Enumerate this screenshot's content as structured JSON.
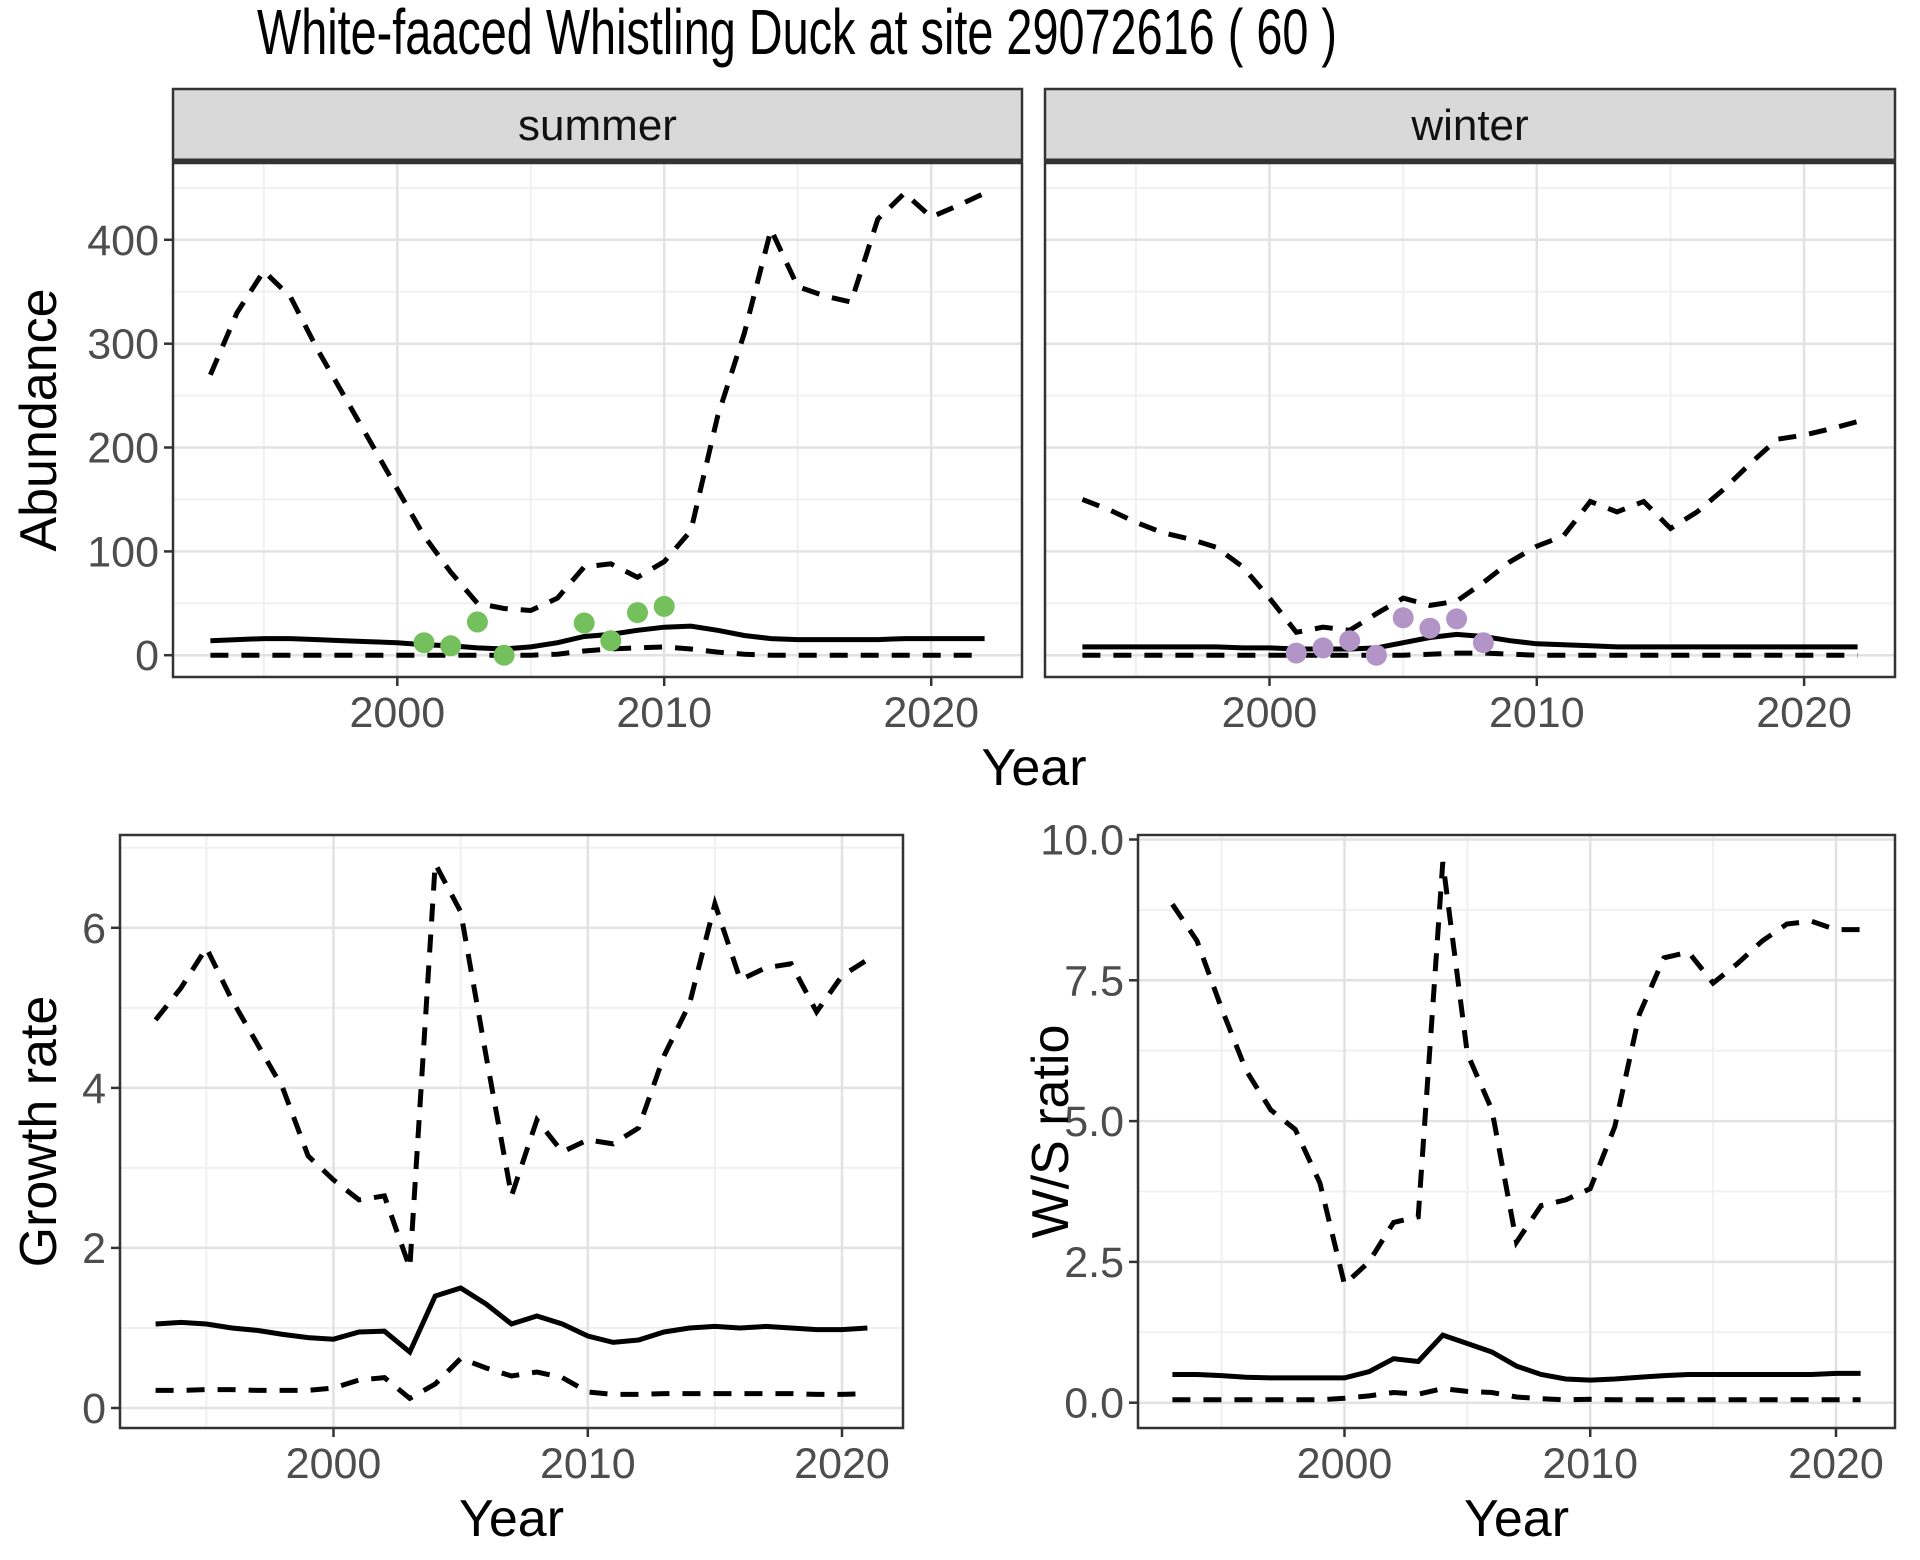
{
  "title": "White-faaced Whistling Duck at site 29072616 ( 60 )",
  "shared_x_axis_label": "Year",
  "colors": {
    "background": "#ffffff",
    "line": "#000000",
    "summer_points": "#74c05c",
    "winter_points": "#b294c7",
    "strip_background": "#d9d9d9",
    "strip_border": "#333333",
    "panel_border": "#333333",
    "grid_major": "#e2e2e2",
    "grid_minor": "#f0f0f0",
    "tick_text": "#4d4d4d",
    "label_text": "#000000",
    "facet_text": "#111111"
  },
  "chart_data": [
    {
      "id": "abundance_summer",
      "type": "line",
      "facet_label": "summer",
      "xlabel": "Year",
      "ylabel": "Abundance",
      "grid": true,
      "legend_position": "none",
      "xlim": [
        1991.6,
        2023.4
      ],
      "ylim": [
        -21,
        474
      ],
      "xticks": {
        "values": [
          2000,
          2010,
          2020
        ],
        "labels": [
          "2000",
          "2010",
          "2020"
        ]
      },
      "yticks": {
        "values": [
          0,
          100,
          200,
          300,
          400
        ],
        "labels": [
          "0",
          "100",
          "200",
          "300",
          "400"
        ]
      },
      "xminor": [
        1995,
        2005,
        2015
      ],
      "yminor": [
        50,
        150,
        250,
        350,
        450
      ],
      "x": [
        1993,
        1994,
        1995,
        1996,
        1997,
        1998,
        1999,
        2000,
        2001,
        2002,
        2003,
        2004,
        2005,
        2006,
        2007,
        2008,
        2009,
        2010,
        2011,
        2012,
        2013,
        2014,
        2015,
        2016,
        2017,
        2018,
        2019,
        2020,
        2021,
        2022
      ],
      "series": [
        {
          "name": "upper_ci",
          "style": "dashed",
          "values": [
            270,
            330,
            370,
            345,
            295,
            250,
            205,
            160,
            115,
            80,
            50,
            45,
            43,
            55,
            85,
            88,
            75,
            90,
            120,
            230,
            310,
            410,
            355,
            346,
            340,
            420,
            445,
            422,
            433,
            445
          ]
        },
        {
          "name": "median",
          "style": "solid",
          "values": [
            14,
            15,
            16,
            16,
            15,
            14,
            13,
            12,
            10,
            9,
            7,
            6,
            8,
            12,
            18,
            20,
            24,
            27,
            28,
            24,
            19,
            16,
            15,
            15,
            15,
            15,
            16,
            16,
            16,
            16
          ]
        },
        {
          "name": "lower_ci",
          "style": "dashed",
          "values": [
            0,
            0,
            0,
            0,
            0,
            0,
            0,
            0,
            0,
            0,
            0,
            0,
            0,
            1,
            4,
            6,
            7,
            8,
            6,
            3,
            1,
            0,
            0,
            0,
            0,
            0,
            0,
            0,
            0,
            0
          ]
        }
      ],
      "points": {
        "name": "summer_observations",
        "color_key": "summer_points",
        "x": [
          2001,
          2002,
          2003,
          2004,
          2007,
          2008,
          2009,
          2010
        ],
        "y": [
          12,
          9,
          32,
          0,
          31,
          14,
          41,
          47
        ]
      }
    },
    {
      "id": "abundance_winter",
      "type": "line",
      "facet_label": "winter",
      "xlabel": "Year",
      "ylabel": "Abundance",
      "grid": true,
      "legend_position": "none",
      "xlim": [
        1991.6,
        2023.4
      ],
      "ylim": [
        -21,
        474
      ],
      "xticks": {
        "values": [
          2000,
          2010,
          2020
        ],
        "labels": [
          "2000",
          "2010",
          "2020"
        ]
      },
      "yticks": {
        "values": [
          0,
          100,
          200,
          300,
          400
        ],
        "labels": [
          "0",
          "100",
          "200",
          "300",
          "400"
        ]
      },
      "xminor": [
        1995,
        2005,
        2015
      ],
      "yminor": [
        50,
        150,
        250,
        350,
        450
      ],
      "x": [
        1993,
        1994,
        1995,
        1996,
        1997,
        1998,
        1999,
        2000,
        2001,
        2002,
        2003,
        2004,
        2005,
        2006,
        2007,
        2008,
        2009,
        2010,
        2011,
        2012,
        2013,
        2014,
        2015,
        2016,
        2017,
        2018,
        2019,
        2020,
        2021,
        2022
      ],
      "series": [
        {
          "name": "upper_ci",
          "style": "dashed",
          "values": [
            150,
            140,
            128,
            118,
            112,
            104,
            85,
            55,
            22,
            27,
            24,
            40,
            55,
            48,
            52,
            70,
            90,
            105,
            115,
            148,
            138,
            148,
            122,
            138,
            160,
            185,
            208,
            212,
            218,
            225
          ]
        },
        {
          "name": "median",
          "style": "solid",
          "values": [
            8,
            8,
            8,
            8,
            8,
            8,
            7,
            7,
            6,
            6,
            6,
            7,
            12,
            17,
            20,
            18,
            14,
            11,
            10,
            9,
            8,
            8,
            8,
            8,
            8,
            8,
            8,
            8,
            8,
            8
          ]
        },
        {
          "name": "lower_ci",
          "style": "dashed",
          "values": [
            0,
            0,
            0,
            0,
            0,
            0,
            0,
            0,
            0,
            0,
            0,
            0,
            0,
            1,
            2,
            2,
            1,
            0,
            0,
            0,
            0,
            0,
            0,
            0,
            0,
            0,
            0,
            0,
            0,
            0
          ]
        }
      ],
      "points": {
        "name": "winter_observations",
        "color_key": "winter_points",
        "x": [
          2001,
          2002,
          2003,
          2004,
          2005,
          2006,
          2007,
          2008
        ],
        "y": [
          2,
          7,
          14,
          0,
          36,
          26,
          35,
          12
        ]
      }
    },
    {
      "id": "growth_rate",
      "type": "line",
      "facet_label": null,
      "xlabel": "Year",
      "ylabel": "Growth rate",
      "grid": true,
      "legend_position": "none",
      "xlim": [
        1991.6,
        2022.4
      ],
      "ylim": [
        -0.25,
        7.16
      ],
      "xticks": {
        "values": [
          2000,
          2010,
          2020
        ],
        "labels": [
          "2000",
          "2010",
          "2020"
        ]
      },
      "yticks": {
        "values": [
          0,
          2,
          4,
          6
        ],
        "labels": [
          "0",
          "2",
          "4",
          "6"
        ]
      },
      "xminor": [
        1995,
        2005,
        2015
      ],
      "yminor": [
        1,
        3,
        5,
        7
      ],
      "x": [
        1993,
        1994,
        1995,
        1996,
        1997,
        1998,
        1999,
        2000,
        2001,
        2002,
        2003,
        2004,
        2005,
        2006,
        2007,
        2008,
        2009,
        2010,
        2011,
        2012,
        2013,
        2014,
        2015,
        2016,
        2017,
        2018,
        2019,
        2020,
        2021
      ],
      "series": [
        {
          "name": "upper_ci",
          "style": "dashed",
          "values": [
            4.85,
            5.25,
            5.75,
            5.1,
            4.55,
            4.0,
            3.15,
            2.85,
            2.6,
            2.65,
            1.75,
            6.8,
            6.2,
            4.4,
            2.65,
            3.6,
            3.2,
            3.35,
            3.3,
            3.5,
            4.4,
            5.05,
            6.3,
            5.35,
            5.5,
            5.55,
            4.95,
            5.4,
            5.6
          ]
        },
        {
          "name": "median",
          "style": "solid",
          "values": [
            1.05,
            1.07,
            1.05,
            1.0,
            0.97,
            0.92,
            0.88,
            0.86,
            0.95,
            0.96,
            0.7,
            1.4,
            1.5,
            1.3,
            1.05,
            1.15,
            1.05,
            0.9,
            0.82,
            0.85,
            0.95,
            1.0,
            1.02,
            1.0,
            1.02,
            1.0,
            0.98,
            0.98,
            1.0
          ]
        },
        {
          "name": "lower_ci",
          "style": "dashed",
          "values": [
            0.22,
            0.22,
            0.23,
            0.23,
            0.22,
            0.22,
            0.22,
            0.25,
            0.35,
            0.38,
            0.12,
            0.3,
            0.62,
            0.5,
            0.4,
            0.45,
            0.38,
            0.2,
            0.17,
            0.17,
            0.18,
            0.18,
            0.18,
            0.18,
            0.18,
            0.18,
            0.17,
            0.17,
            0.18
          ]
        }
      ],
      "points": null
    },
    {
      "id": "ws_ratio",
      "type": "line",
      "facet_label": null,
      "xlabel": "Year",
      "ylabel": "W/S ratio",
      "grid": true,
      "legend_position": "none",
      "xlim": [
        1991.6,
        2022.4
      ],
      "ylim": [
        -0.45,
        10.08
      ],
      "xticks": {
        "values": [
          2000,
          2010,
          2020
        ],
        "labels": [
          "2000",
          "2010",
          "2020"
        ]
      },
      "yticks": {
        "values": [
          0,
          2.5,
          5,
          7.5,
          10
        ],
        "labels": [
          "0.0",
          "2.5",
          "5.0",
          "7.5",
          "10.0"
        ]
      },
      "xminor": [
        1995,
        2005,
        2015
      ],
      "yminor": [
        1.25,
        3.75,
        6.25,
        8.75
      ],
      "x": [
        1993,
        1994,
        1995,
        1996,
        1997,
        1998,
        1999,
        2000,
        2001,
        2002,
        2003,
        2004,
        2005,
        2006,
        2007,
        2008,
        2009,
        2010,
        2011,
        2012,
        2013,
        2014,
        2015,
        2016,
        2017,
        2018,
        2019,
        2020,
        2021
      ],
      "series": [
        {
          "name": "upper_ci",
          "style": "dashed",
          "values": [
            8.85,
            8.2,
            7.0,
            5.9,
            5.2,
            4.85,
            3.9,
            2.1,
            2.5,
            3.2,
            3.3,
            9.6,
            6.2,
            5.2,
            2.85,
            3.5,
            3.6,
            3.8,
            4.9,
            6.9,
            7.9,
            8.0,
            7.45,
            7.8,
            8.2,
            8.5,
            8.55,
            8.4,
            8.4
          ]
        },
        {
          "name": "median",
          "style": "solid",
          "values": [
            0.5,
            0.5,
            0.48,
            0.45,
            0.44,
            0.44,
            0.44,
            0.44,
            0.55,
            0.78,
            0.73,
            1.2,
            1.05,
            0.9,
            0.65,
            0.5,
            0.42,
            0.4,
            0.42,
            0.45,
            0.48,
            0.5,
            0.5,
            0.5,
            0.5,
            0.5,
            0.5,
            0.52,
            0.52
          ]
        },
        {
          "name": "lower_ci",
          "style": "dashed",
          "values": [
            0.05,
            0.05,
            0.05,
            0.05,
            0.05,
            0.05,
            0.05,
            0.08,
            0.12,
            0.18,
            0.15,
            0.25,
            0.2,
            0.18,
            0.1,
            0.07,
            0.05,
            0.06,
            0.05,
            0.05,
            0.05,
            0.05,
            0.05,
            0.05,
            0.05,
            0.05,
            0.05,
            0.05,
            0.05
          ]
        }
      ],
      "points": null
    }
  ]
}
